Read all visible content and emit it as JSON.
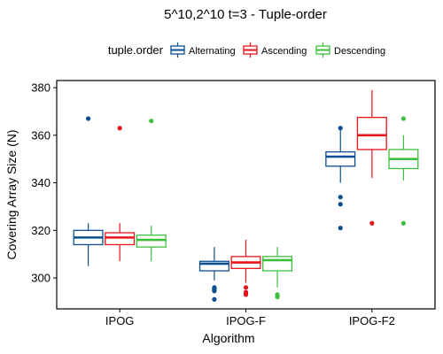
{
  "chart_data": {
    "type": "box",
    "title": "5^10,2^10 t=3 - Tuple-order",
    "xlabel": "Algorithm",
    "ylabel": "Covering Array Size (N)",
    "ylim": [
      287,
      383
    ],
    "yticks": [
      300,
      320,
      340,
      360,
      380
    ],
    "grid": false,
    "legend_position": "top",
    "legend_title": "tuple.order",
    "categories": [
      "IPOG",
      "IPOG-F",
      "IPOG-F2"
    ],
    "series": [
      {
        "name": "Alternating",
        "color": "#0b4f91",
        "boxes": [
          {
            "min": 305,
            "q1": 314,
            "median": 317,
            "q3": 320,
            "max": 323,
            "outliers": [
              367
            ]
          },
          {
            "min": 299,
            "q1": 303,
            "median": 306,
            "q3": 307,
            "max": 313,
            "outliers": [
              296,
              295.5,
              295,
              294.5,
              291
            ]
          },
          {
            "min": 340,
            "q1": 347,
            "median": 351,
            "q3": 353,
            "max": 363,
            "outliers": [
              363,
              334,
              331,
              321
            ]
          }
        ]
      },
      {
        "name": "Ascending",
        "color": "#e8131b",
        "boxes": [
          {
            "min": 307,
            "q1": 314,
            "median": 317,
            "q3": 319,
            "max": 323,
            "outliers": [
              363
            ]
          },
          {
            "min": 298,
            "q1": 304,
            "median": 306.5,
            "q3": 309,
            "max": 316,
            "outliers": [
              296,
              294,
              293.5,
              293
            ]
          },
          {
            "min": 342,
            "q1": 354,
            "median": 360,
            "q3": 367.5,
            "max": 379,
            "outliers": [
              323
            ]
          }
        ]
      },
      {
        "name": "Descending",
        "color": "#3dbf3d",
        "boxes": [
          {
            "min": 307,
            "q1": 313,
            "median": 316,
            "q3": 318,
            "max": 322,
            "outliers": [
              366
            ]
          },
          {
            "min": 296,
            "q1": 303,
            "median": 307.5,
            "q3": 309,
            "max": 313,
            "outliers": [
              293,
              292.5,
              292
            ]
          },
          {
            "min": 341,
            "q1": 346,
            "median": 350,
            "q3": 354,
            "max": 360,
            "outliers": [
              367,
              323
            ]
          }
        ]
      }
    ]
  }
}
